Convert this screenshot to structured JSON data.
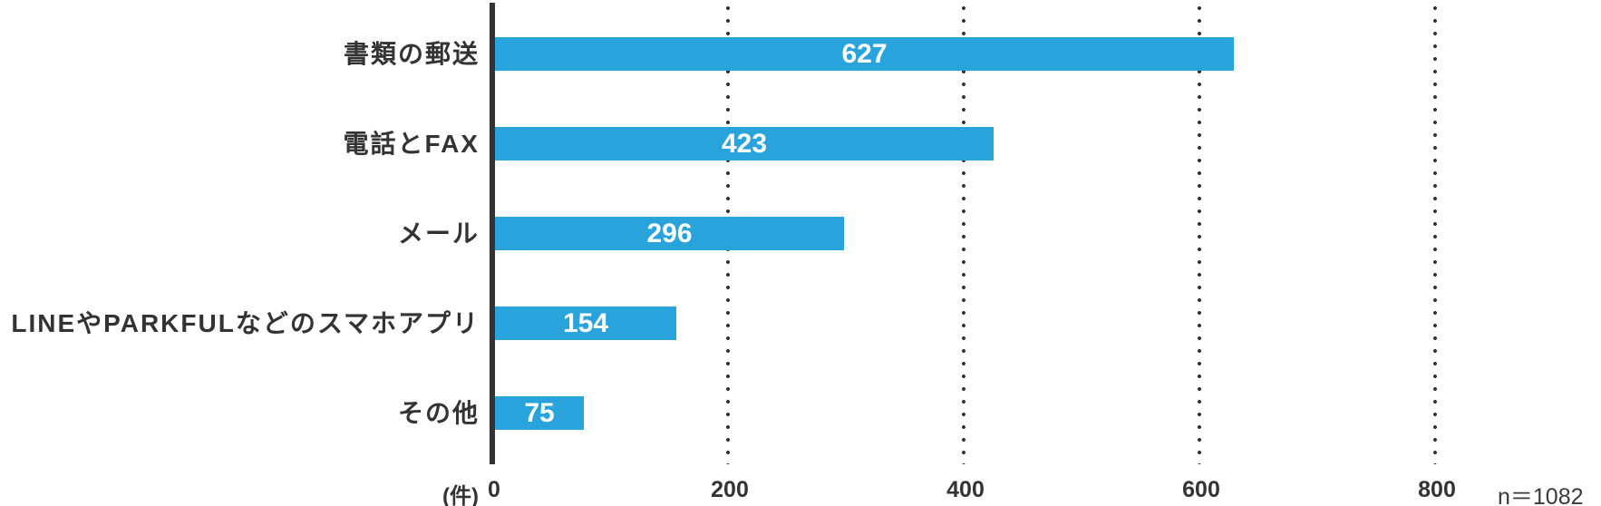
{
  "chart_data": {
    "type": "bar",
    "orientation": "horizontal",
    "title": "",
    "categories": [
      "書類の郵送",
      "電話とFAX",
      "メール",
      "LINEやPARKFULなどのスマホアプリ",
      "その他"
    ],
    "values": [
      627,
      423,
      296,
      154,
      75
    ],
    "value_label_style": "inside-center-white",
    "x_ticks": [
      0,
      200,
      400,
      600,
      800
    ],
    "xlim": [
      0,
      800
    ],
    "unit_label": "(件)",
    "sample_label": "n＝1082",
    "grid": "dotted-vertical",
    "legend": "none",
    "bar_color": "#29A3DB",
    "ink_color": "#333333"
  }
}
